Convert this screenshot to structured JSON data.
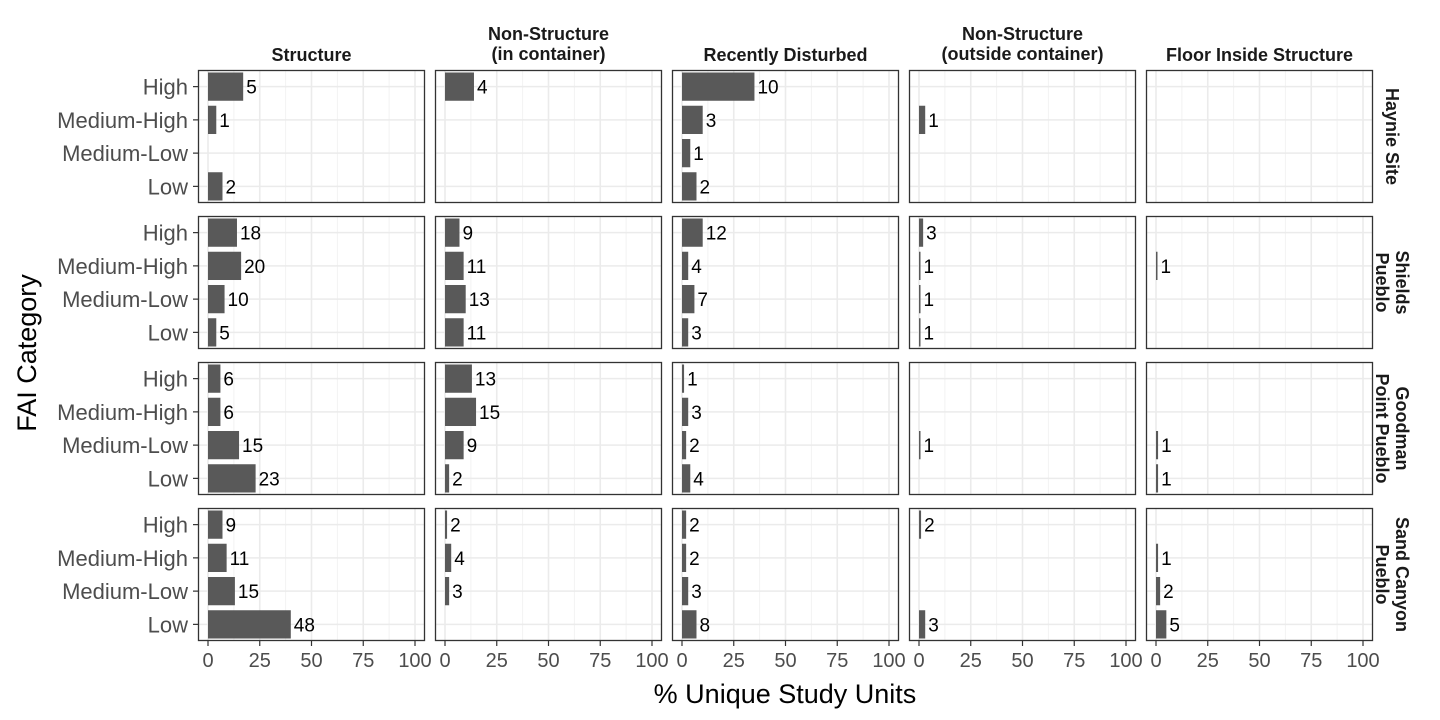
{
  "chart_data": {
    "type": "bar",
    "orientation": "horizontal",
    "facet_columns": [
      [
        "Structure"
      ],
      [
        "Non-Structure",
        "(in container)"
      ],
      [
        "Recently Disturbed"
      ],
      [
        "Non-Structure",
        "(outside container)"
      ],
      [
        "Floor Inside Structure"
      ]
    ],
    "facet_rows": [
      [
        "Haynie Site"
      ],
      [
        "Shields",
        "Pueblo"
      ],
      [
        "Goodman",
        "Point Pueblo"
      ],
      [
        "Sand Canyon",
        "Pueblo"
      ]
    ],
    "categories": [
      "High",
      "Medium-High",
      "Medium-Low",
      "Low"
    ],
    "xlabel": "% Unique Study Units",
    "ylabel": "FAI Category",
    "xlim": [
      0,
      100
    ],
    "xticks": [
      "0",
      "25",
      "50",
      "75",
      "100"
    ],
    "bar_color": "#595959",
    "panels": [
      [
        {
          "values": [
            17,
            4,
            null,
            7
          ],
          "labels": [
            "5",
            "1",
            null,
            "2"
          ]
        },
        {
          "values": [
            14,
            null,
            null,
            null
          ],
          "labels": [
            "4",
            null,
            null,
            null
          ]
        },
        {
          "values": [
            35,
            10,
            4,
            7
          ],
          "labels": [
            "10",
            "3",
            "1",
            "2"
          ]
        },
        {
          "values": [
            null,
            3,
            null,
            null
          ],
          "labels": [
            null,
            "1",
            null,
            null
          ]
        },
        {
          "values": [
            null,
            null,
            null,
            null
          ],
          "labels": [
            null,
            null,
            null,
            null
          ]
        }
      ],
      [
        {
          "values": [
            14,
            16,
            8,
            4
          ],
          "labels": [
            "18",
            "20",
            "10",
            "5"
          ]
        },
        {
          "values": [
            7,
            9,
            10,
            9
          ],
          "labels": [
            "9",
            "11",
            "13",
            "11"
          ]
        },
        {
          "values": [
            10,
            3,
            6,
            3
          ],
          "labels": [
            "12",
            "4",
            "7",
            "3"
          ]
        },
        {
          "values": [
            2,
            0.5,
            0.5,
            0.5
          ],
          "labels": [
            "3",
            "1",
            "1",
            "1"
          ]
        },
        {
          "values": [
            null,
            0.5,
            null,
            null
          ],
          "labels": [
            null,
            "1",
            null,
            null
          ]
        }
      ],
      [
        {
          "values": [
            6,
            6,
            15,
            23
          ],
          "labels": [
            "6",
            "6",
            "15",
            "23"
          ]
        },
        {
          "values": [
            13,
            15,
            9,
            2
          ],
          "labels": [
            "13",
            "15",
            "9",
            "2"
          ]
        },
        {
          "values": [
            1,
            3,
            2,
            4
          ],
          "labels": [
            "1",
            "3",
            "2",
            "4"
          ]
        },
        {
          "values": [
            null,
            null,
            0.5,
            null
          ],
          "labels": [
            null,
            null,
            "1",
            null
          ]
        },
        {
          "values": [
            null,
            null,
            1,
            1
          ],
          "labels": [
            null,
            null,
            "1",
            "1"
          ]
        }
      ],
      [
        {
          "values": [
            7,
            9,
            13,
            40
          ],
          "labels": [
            "9",
            "11",
            "15",
            "48"
          ]
        },
        {
          "values": [
            1,
            3,
            2,
            null
          ],
          "labels": [
            "2",
            "4",
            "3",
            null
          ]
        },
        {
          "values": [
            2,
            2,
            3,
            7
          ],
          "labels": [
            "2",
            "2",
            "3",
            "8"
          ]
        },
        {
          "values": [
            1,
            null,
            null,
            3
          ],
          "labels": [
            "2",
            null,
            null,
            "3"
          ]
        },
        {
          "values": [
            null,
            1,
            2,
            5
          ],
          "labels": [
            null,
            "1",
            "2",
            "5"
          ]
        }
      ]
    ]
  }
}
